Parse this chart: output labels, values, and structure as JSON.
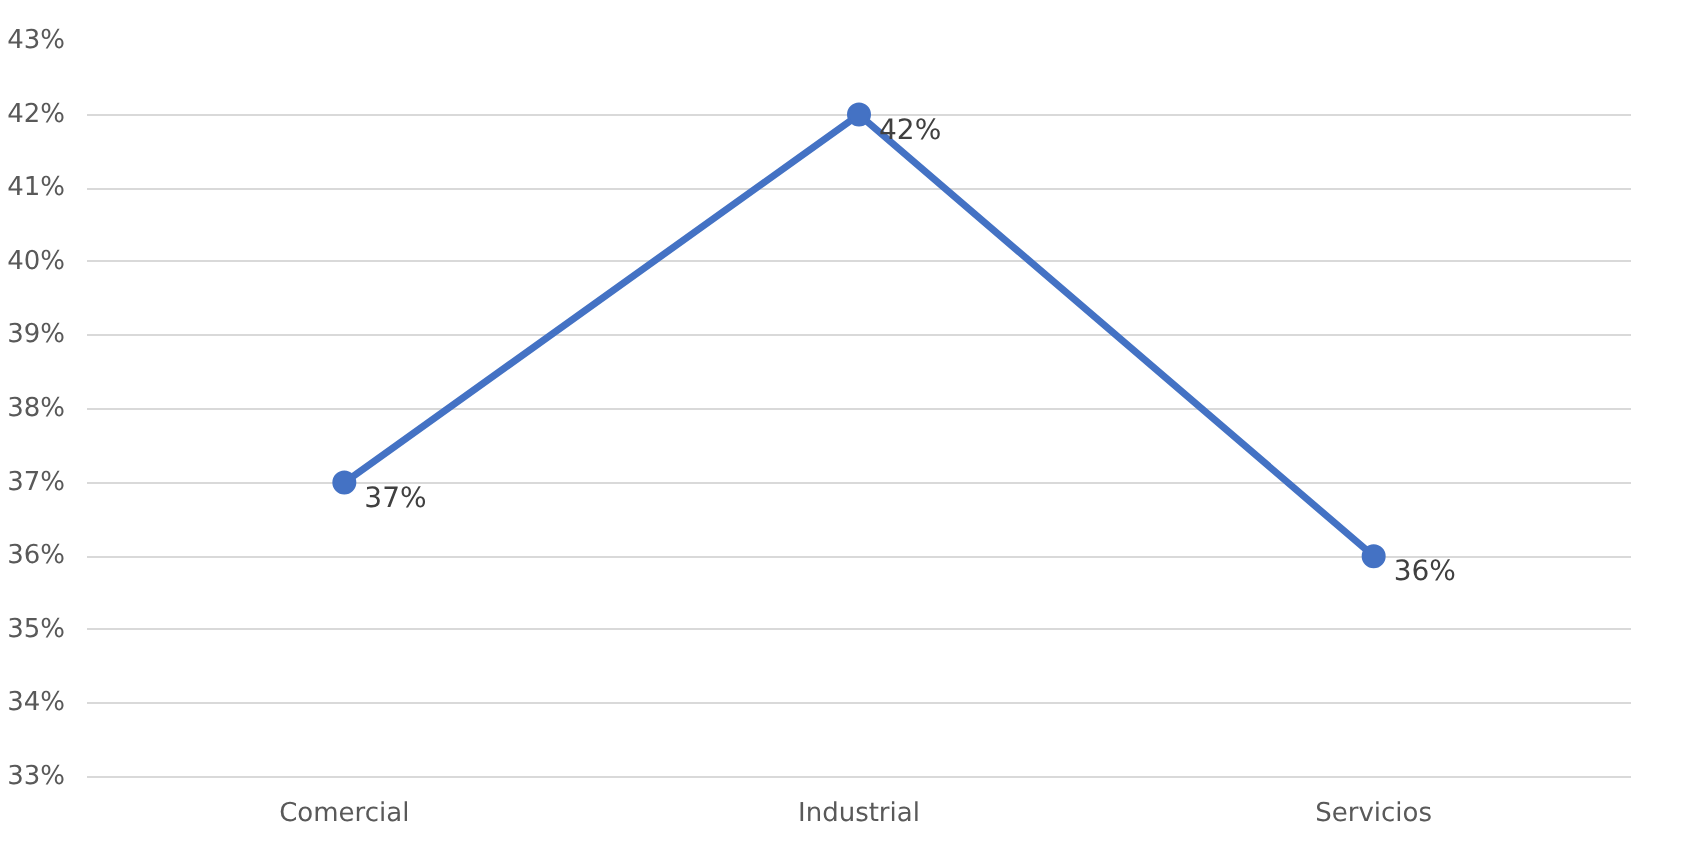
{
  "chart_data": {
    "type": "line",
    "categories": [
      "Comercial",
      "Industrial",
      "Servicios"
    ],
    "series": [
      {
        "color": "#4472c4",
        "values": [
          37,
          42,
          36
        ]
      }
    ],
    "value_labels": [
      "37%",
      "42%",
      "36%"
    ],
    "ylim": [
      33,
      43
    ],
    "yticks": [
      {
        "value": 33,
        "label": "33%"
      },
      {
        "value": 34,
        "label": "34%"
      },
      {
        "value": 35,
        "label": "35%"
      },
      {
        "value": 36,
        "label": "36%"
      },
      {
        "value": 37,
        "label": "37%"
      },
      {
        "value": 38,
        "label": "38%"
      },
      {
        "value": 39,
        "label": "39%"
      },
      {
        "value": 40,
        "label": "40%"
      },
      {
        "value": 41,
        "label": "41%"
      },
      {
        "value": 42,
        "label": "42%"
      },
      {
        "value": 43,
        "label": "43%"
      }
    ],
    "grid": "y",
    "marker": "circle",
    "line_style": "solid"
  }
}
